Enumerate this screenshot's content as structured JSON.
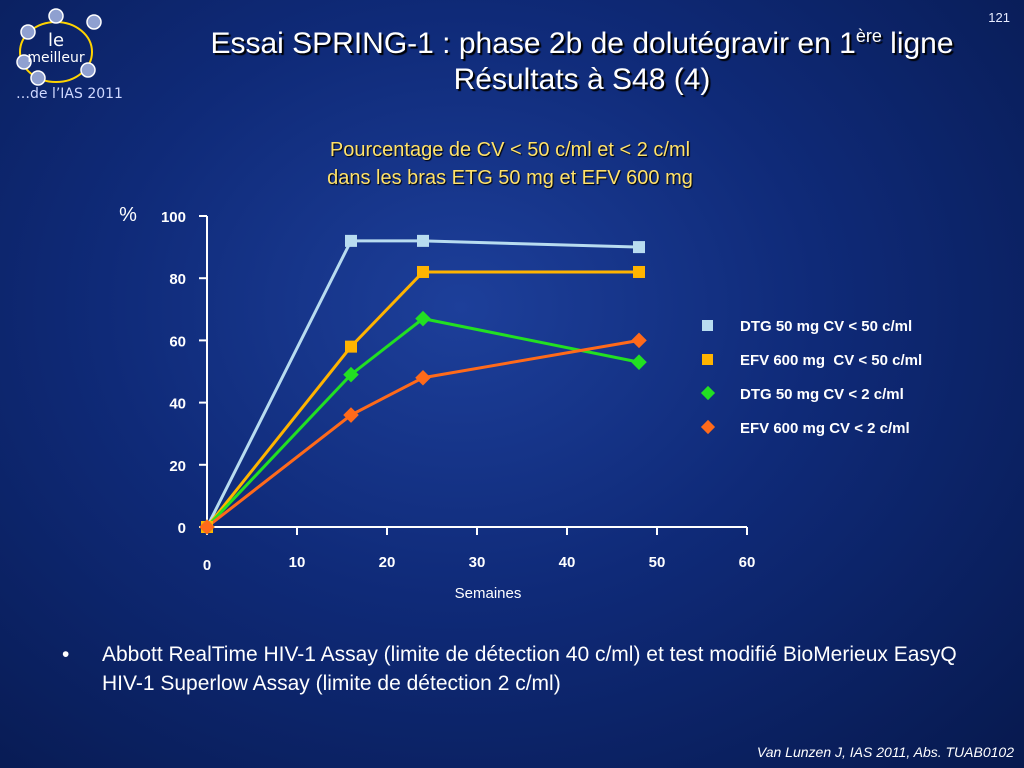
{
  "logo": {
    "top_text": "le",
    "bottom_text": "meilleur",
    "subtitle": "…de l’IAS 2011"
  },
  "slide_number": "121",
  "title": {
    "line1_before": "Essai SPRING-1 : phase 2b de dolutégravir en 1",
    "line1_sup": "ère",
    "line1_after": " ligne",
    "line2": "Résultats à S48 (4)"
  },
  "subtitle": {
    "line1": "Pourcentage de CV < 50 c/ml et < 2 c/ml",
    "line2": "dans les bras ETG 50 mg et EFV 600 mg"
  },
  "colors": {
    "dtg50": "#b8dcf0",
    "efv50": "#ffb400",
    "dtg2": "#22e022",
    "efv2": "#ff6a1a",
    "title_yellow": "#ffe26b"
  },
  "chart_data": {
    "type": "line",
    "ylabel": "%",
    "xlabel": "Semaines",
    "xlim": [
      0,
      60
    ],
    "ylim": [
      0,
      100
    ],
    "x_ticks": [
      0,
      10,
      20,
      30,
      40,
      50,
      60
    ],
    "y_ticks": [
      0,
      20,
      40,
      60,
      80,
      100
    ],
    "series": [
      {
        "name": "DTG 50 mg CV < 50 c/ml",
        "marker": "square",
        "color": "#b8dcf0",
        "points": [
          [
            0,
            0
          ],
          [
            16,
            92
          ],
          [
            24,
            92
          ],
          [
            48,
            90
          ]
        ]
      },
      {
        "name": "EFV 600 mg  CV < 50 c/ml",
        "marker": "square",
        "color": "#ffb400",
        "points": [
          [
            0,
            0
          ],
          [
            16,
            58
          ],
          [
            24,
            82
          ],
          [
            48,
            82
          ]
        ]
      },
      {
        "name": "DTG 50 mg CV < 2 c/ml",
        "marker": "diamond",
        "color": "#22e022",
        "points": [
          [
            0,
            0
          ],
          [
            16,
            49
          ],
          [
            24,
            67
          ],
          [
            48,
            53
          ]
        ]
      },
      {
        "name": "EFV 600 mg CV < 2 c/ml",
        "marker": "diamond",
        "color": "#ff6a1a",
        "points": [
          [
            0,
            0
          ],
          [
            16,
            36
          ],
          [
            24,
            48
          ],
          [
            48,
            60
          ]
        ]
      }
    ]
  },
  "bullets": [
    "Abbott RealTime HIV-1 Assay (limite de détection 40 c/ml) et test modifié BioMerieux EasyQ HIV-1 Superlow Assay (limite de détection 2 c/ml)"
  ],
  "bullet_symbol": "•",
  "citation": "Van Lunzen J, IAS 2011, Abs. TUAB0102"
}
